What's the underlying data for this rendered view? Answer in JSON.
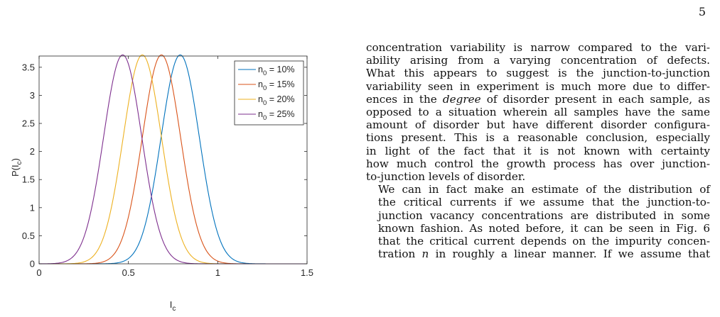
{
  "page": {
    "number": "5"
  },
  "chart_data": {
    "type": "line",
    "xlabel": "I",
    "xlabel_sub": "c",
    "ylabel": "P(I",
    "ylabel_sub": "c",
    "ylabel_close": ")",
    "xlim": [
      0,
      1.5
    ],
    "ylim": [
      0,
      3.7
    ],
    "xticks": [
      "0",
      "0.5",
      "1",
      "1.5"
    ],
    "yticks": [
      "0",
      "0.5",
      "1",
      "1.5",
      "2",
      "2.5",
      "3",
      "3.5"
    ],
    "legend_position": "top-right",
    "series": [
      {
        "name": "n0 = 10%",
        "label_main": "n",
        "label_sub": "0",
        "label_rest": " = 10%",
        "color": "#0072BD",
        "mean": 0.79,
        "sigma": 0.107,
        "peak": 3.72
      },
      {
        "name": "n0 = 15%",
        "label_main": "n",
        "label_sub": "0",
        "label_rest": " = 15%",
        "color": "#D95319",
        "mean": 0.685,
        "sigma": 0.107,
        "peak": 3.72
      },
      {
        "name": "n0 = 20%",
        "label_main": "n",
        "label_sub": "0",
        "label_rest": " = 20%",
        "color": "#EDB120",
        "mean": 0.578,
        "sigma": 0.107,
        "peak": 3.72
      },
      {
        "name": "n0 = 25%",
        "label_main": "n",
        "label_sub": "0",
        "label_rest": " = 25%",
        "color": "#7E2F8E",
        "mean": 0.468,
        "sigma": 0.107,
        "peak": 3.72
      }
    ]
  },
  "text": {
    "p1": [
      "concentration variability is narrow compared to the vari-",
      "ability arising from a varying concentration of defects.",
      "What this appears to suggest is the junction-to-junction",
      "variability seen in experiment is much more due to differ-",
      "ences in the ",
      "degree",
      " of disorder present in each sample, as",
      "opposed to a situation wherein all samples have the same",
      "amount of disorder but have different disorder configura-",
      "tions present. This is a reasonable conclusion, especially",
      "in light of the fact that it is not known with certainty",
      "how much control the growth process has over junction-",
      "to-junction levels of disorder."
    ],
    "p2": [
      "We can in fact make an estimate of the distribution of",
      "the critical currents if we assume that the junction-to-",
      "junction vacancy concentrations are distributed in some",
      "known fashion. As noted before, it can be seen in Fig. 6",
      "that the critical current depends on the impurity concen-",
      "tration ",
      "n",
      " in roughly a linear manner. If we assume that"
    ]
  }
}
